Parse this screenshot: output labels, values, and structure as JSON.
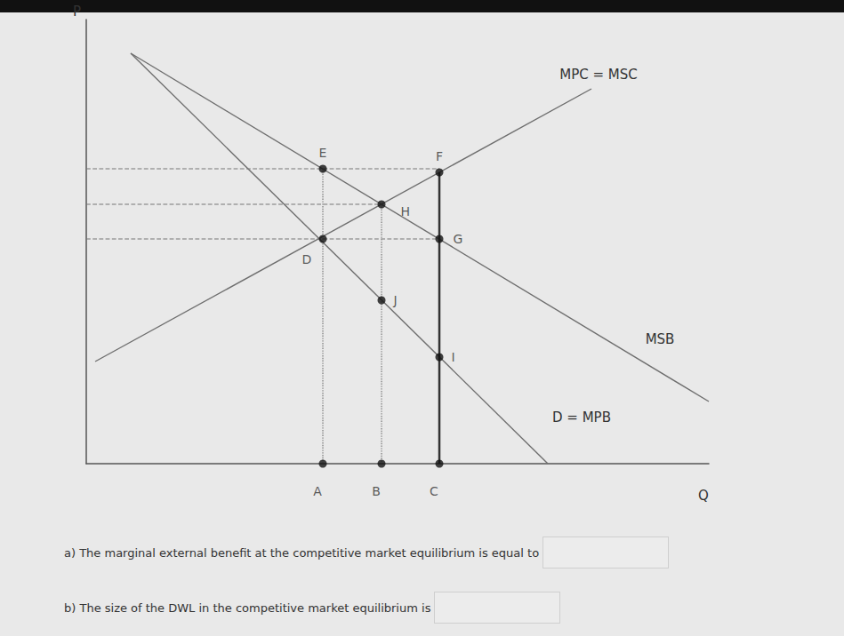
{
  "chart_data": {
    "type": "line",
    "xlabel": "Q",
    "ylabel": "P",
    "xlim": [
      0,
      700
    ],
    "ylim": [
      0,
      500
    ],
    "tick_labels": false,
    "grid": false,
    "series": [
      {
        "name": "MPC = MSC",
        "x": [
          10,
          568
        ],
        "values": [
          115,
          422
        ],
        "color": "#6e6e6e",
        "line_style": "solid"
      },
      {
        "name": "MSB",
        "x": [
          50,
          700
        ],
        "values": [
          462,
          70
        ],
        "color": "#6e6e6e",
        "line_style": "solid"
      },
      {
        "name": "D = MPB",
        "x": [
          50,
          519
        ],
        "values": [
          462,
          0
        ],
        "color": "#6e6e6e",
        "line_style": "solid"
      },
      {
        "x": [
          0,
          397
        ],
        "values": [
          332,
          332
        ],
        "color": "#777777",
        "line_style": "dashed"
      },
      {
        "x": [
          0,
          332
        ],
        "values": [
          292,
          292
        ],
        "color": "#777777",
        "line_style": "dashed"
      },
      {
        "x": [
          0,
          397
        ],
        "values": [
          253,
          253
        ],
        "color": "#777777",
        "line_style": "dashed"
      },
      {
        "x": [
          266,
          266
        ],
        "values": [
          332,
          0
        ],
        "color": "#888888",
        "line_style": "dotted"
      },
      {
        "x": [
          332,
          332
        ],
        "values": [
          292,
          0
        ],
        "color": "#888888",
        "line_style": "dotted"
      },
      {
        "x": [
          397,
          397
        ],
        "values": [
          328,
          0
        ],
        "color": "#333333",
        "line_style": "solid"
      }
    ],
    "points": [
      {
        "label": "E",
        "x": 266,
        "y": 332
      },
      {
        "label": "F",
        "x": 397,
        "y": 328
      },
      {
        "label": "H",
        "x": 332,
        "y": 292
      },
      {
        "label": "G",
        "x": 397,
        "y": 253
      },
      {
        "label": "D",
        "x": 266,
        "y": 253
      },
      {
        "label": "J",
        "x": 332,
        "y": 184
      },
      {
        "label": "I",
        "x": 397,
        "y": 120
      },
      {
        "label": "A",
        "x": 266,
        "y": 0
      },
      {
        "label": "B",
        "x": 332,
        "y": 0
      },
      {
        "label": "C",
        "x": 397,
        "y": 0
      }
    ],
    "marker": "circle",
    "color": "#111111"
  },
  "questions": [
    "a) The marginal external benefit at the competitive market equilibrium is equal to",
    "b) The size of the DWL in the competitive market equilibrium is"
  ]
}
